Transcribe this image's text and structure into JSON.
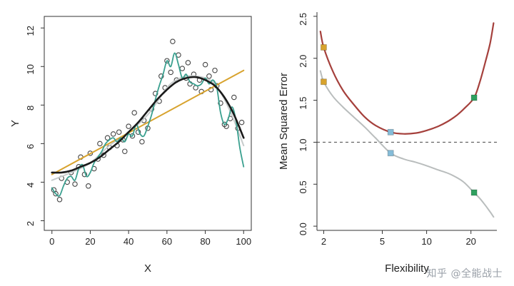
{
  "watermark": {
    "text": "知乎 @全能战士"
  },
  "chart_data": [
    {
      "id": "left",
      "type": "scatter",
      "title": "",
      "xlabel": "X",
      "ylabel": "Y",
      "xscale": "linear",
      "xlim": [
        -4,
        104
      ],
      "ylim": [
        1.5,
        12.6
      ],
      "xticks": [
        0,
        20,
        40,
        60,
        80,
        100
      ],
      "yticks": [
        2,
        4,
        6,
        8,
        10,
        12
      ],
      "xtick_labels": [
        "0",
        "20",
        "40",
        "60",
        "80",
        "100"
      ],
      "ytick_labels": [
        "2",
        "4",
        "6",
        "8",
        "10",
        "12"
      ],
      "box": true,
      "grid": false,
      "points": [
        [
          1,
          3.6
        ],
        [
          2,
          3.4
        ],
        [
          4,
          3.1
        ],
        [
          5,
          4.2
        ],
        [
          8,
          4.0
        ],
        [
          10,
          4.5
        ],
        [
          12,
          3.9
        ],
        [
          14,
          4.8
        ],
        [
          15,
          5.3
        ],
        [
          17,
          4.4
        ],
        [
          19,
          3.8
        ],
        [
          20,
          5.5
        ],
        [
          22,
          4.7
        ],
        [
          24,
          5.2
        ],
        [
          25,
          6.0
        ],
        [
          27,
          5.4
        ],
        [
          29,
          6.3
        ],
        [
          30,
          5.8
        ],
        [
          32,
          6.5
        ],
        [
          34,
          5.9
        ],
        [
          35,
          6.6
        ],
        [
          37,
          6.2
        ],
        [
          38,
          5.6
        ],
        [
          40,
          6.9
        ],
        [
          42,
          6.4
        ],
        [
          43,
          7.6
        ],
        [
          45,
          6.6
        ],
        [
          47,
          6.1
        ],
        [
          48,
          7.2
        ],
        [
          50,
          6.8
        ],
        [
          52,
          7.8
        ],
        [
          54,
          8.6
        ],
        [
          56,
          8.2
        ],
        [
          57,
          9.5
        ],
        [
          59,
          8.9
        ],
        [
          60,
          10.3
        ],
        [
          62,
          9.7
        ],
        [
          63,
          11.3
        ],
        [
          65,
          9.3
        ],
        [
          66,
          10.6
        ],
        [
          68,
          9.9
        ],
        [
          70,
          9.4
        ],
        [
          71,
          10.2
        ],
        [
          72,
          9.1
        ],
        [
          74,
          9.6
        ],
        [
          75,
          8.9
        ],
        [
          77,
          9.3
        ],
        [
          78,
          8.7
        ],
        [
          80,
          10.1
        ],
        [
          82,
          9.5
        ],
        [
          83,
          8.8
        ],
        [
          85,
          9.8
        ],
        [
          86,
          9.0
        ],
        [
          88,
          8.1
        ],
        [
          90,
          7.0
        ],
        [
          91,
          6.9
        ],
        [
          93,
          7.3
        ],
        [
          95,
          8.4
        ],
        [
          97,
          6.8
        ],
        [
          99,
          7.1
        ]
      ],
      "series": [
        {
          "name": "smooth-spline",
          "color": "#c7cccc",
          "width": 2,
          "smooth": true,
          "points": [
            [
              0,
              4.1
            ],
            [
              10,
              4.5
            ],
            [
              20,
              5.0
            ],
            [
              30,
              5.9
            ],
            [
              40,
              6.6
            ],
            [
              50,
              7.5
            ],
            [
              60,
              8.9
            ],
            [
              65,
              9.3
            ],
            [
              70,
              9.5
            ],
            [
              75,
              9.5
            ],
            [
              80,
              9.4
            ],
            [
              85,
              9.1
            ],
            [
              90,
              8.3
            ],
            [
              95,
              7.2
            ],
            [
              100,
              5.9
            ]
          ]
        },
        {
          "name": "linear-fit",
          "color": "#d8a32e",
          "width": 2,
          "smooth": false,
          "points": [
            [
              0,
              4.4
            ],
            [
              100,
              9.8
            ]
          ]
        },
        {
          "name": "flexible-spline",
          "color": "#3aa08f",
          "width": 1.8,
          "smooth": true,
          "points": [
            [
              0,
              3.7
            ],
            [
              2,
              3.4
            ],
            [
              4,
              3.3
            ],
            [
              6,
              3.8
            ],
            [
              8,
              4.2
            ],
            [
              10,
              4.3
            ],
            [
              12,
              4.1
            ],
            [
              14,
              4.7
            ],
            [
              16,
              4.9
            ],
            [
              18,
              4.3
            ],
            [
              20,
              4.5
            ],
            [
              22,
              5.0
            ],
            [
              24,
              5.3
            ],
            [
              26,
              5.6
            ],
            [
              28,
              6.0
            ],
            [
              30,
              6.2
            ],
            [
              32,
              6.3
            ],
            [
              34,
              6.1
            ],
            [
              36,
              6.3
            ],
            [
              38,
              6.1
            ],
            [
              40,
              6.5
            ],
            [
              42,
              6.4
            ],
            [
              44,
              7.0
            ],
            [
              46,
              6.5
            ],
            [
              48,
              6.4
            ],
            [
              50,
              6.9
            ],
            [
              52,
              7.5
            ],
            [
              54,
              8.3
            ],
            [
              56,
              9.0
            ],
            [
              58,
              9.6
            ],
            [
              60,
              10.3
            ],
            [
              62,
              10.0
            ],
            [
              64,
              10.7
            ],
            [
              66,
              10.1
            ],
            [
              68,
              9.4
            ],
            [
              70,
              9.6
            ],
            [
              72,
              9.2
            ],
            [
              74,
              9.1
            ],
            [
              76,
              9.0
            ],
            [
              78,
              9.1
            ],
            [
              80,
              9.4
            ],
            [
              82,
              9.1
            ],
            [
              84,
              9.3
            ],
            [
              86,
              8.9
            ],
            [
              88,
              7.6
            ],
            [
              90,
              7.0
            ],
            [
              92,
              7.3
            ],
            [
              94,
              7.9
            ],
            [
              96,
              7.2
            ],
            [
              98,
              5.8
            ],
            [
              100,
              4.8
            ]
          ]
        },
        {
          "name": "true-function",
          "color": "#1a1a1a",
          "width": 2.6,
          "smooth": true,
          "points": [
            [
              0,
              4.5
            ],
            [
              5,
              4.5
            ],
            [
              10,
              4.6
            ],
            [
              15,
              4.8
            ],
            [
              20,
              5.0
            ],
            [
              25,
              5.3
            ],
            [
              30,
              5.7
            ],
            [
              35,
              6.1
            ],
            [
              40,
              6.6
            ],
            [
              45,
              7.1
            ],
            [
              50,
              7.7
            ],
            [
              55,
              8.3
            ],
            [
              60,
              8.8
            ],
            [
              65,
              9.2
            ],
            [
              70,
              9.4
            ],
            [
              75,
              9.45
            ],
            [
              80,
              9.3
            ],
            [
              85,
              9.0
            ],
            [
              90,
              8.4
            ],
            [
              95,
              7.5
            ],
            [
              100,
              6.3
            ]
          ]
        }
      ]
    },
    {
      "id": "right",
      "type": "line",
      "title": "",
      "xlabel": "Flexibility",
      "ylabel": "Mean Squared Error",
      "xscale": "log",
      "xlim": [
        1.8,
        30
      ],
      "ylim": [
        -0.05,
        2.55
      ],
      "xticks": [
        2,
        5,
        10,
        20
      ],
      "yticks": [
        0.0,
        0.5,
        1.0,
        1.5,
        2.0,
        2.5
      ],
      "xtick_labels": [
        "2",
        "5",
        "10",
        "20"
      ],
      "ytick_labels": [
        "0.0",
        "0.5",
        "1.0",
        "1.5",
        "2.0",
        "2.5"
      ],
      "box": false,
      "grid": false,
      "hline": {
        "y": 1.0,
        "dash": "4 4",
        "color": "#444",
        "width": 1,
        "name": "irreducible-error-line"
      },
      "series": [
        {
          "name": "training-mse",
          "color": "#b9bdbd",
          "width": 2,
          "smooth": true,
          "points": [
            [
              1.9,
              1.85
            ],
            [
              2,
              1.72
            ],
            [
              2.3,
              1.55
            ],
            [
              2.7,
              1.42
            ],
            [
              3.2,
              1.3
            ],
            [
              3.8,
              1.18
            ],
            [
              4.5,
              1.05
            ],
            [
              5.7,
              0.87
            ],
            [
              7,
              0.8
            ],
            [
              8.5,
              0.76
            ],
            [
              10,
              0.72
            ],
            [
              12,
              0.67
            ],
            [
              14,
              0.63
            ],
            [
              16,
              0.58
            ],
            [
              18,
              0.52
            ],
            [
              21,
              0.4
            ],
            [
              23,
              0.33
            ],
            [
              25,
              0.25
            ],
            [
              27,
              0.17
            ],
            [
              28.5,
              0.11
            ]
          ]
        },
        {
          "name": "test-mse",
          "color": "#a5403c",
          "width": 2.2,
          "smooth": true,
          "points": [
            [
              1.9,
              2.32
            ],
            [
              2,
              2.13
            ],
            [
              2.3,
              1.85
            ],
            [
              2.7,
              1.62
            ],
            [
              3.2,
              1.45
            ],
            [
              3.8,
              1.3
            ],
            [
              4.5,
              1.2
            ],
            [
              5.7,
              1.12
            ],
            [
              7,
              1.1
            ],
            [
              8.5,
              1.11
            ],
            [
              10,
              1.14
            ],
            [
              12,
              1.19
            ],
            [
              14,
              1.25
            ],
            [
              16,
              1.32
            ],
            [
              18,
              1.4
            ],
            [
              21,
              1.53
            ],
            [
              23,
              1.72
            ],
            [
              25,
              1.95
            ],
            [
              27,
              2.18
            ],
            [
              28.5,
              2.42
            ]
          ]
        }
      ],
      "markers": [
        {
          "name": "linear-model-test-mse",
          "color": "#d8a32e",
          "x": 2,
          "y": 2.13
        },
        {
          "name": "linear-model-train-mse",
          "color": "#d8a32e",
          "x": 2,
          "y": 1.72
        },
        {
          "name": "medium-flex-test-mse",
          "color": "#85bcd8",
          "x": 5.7,
          "y": 1.12
        },
        {
          "name": "medium-flex-train-mse",
          "color": "#85bcd8",
          "x": 5.7,
          "y": 0.87
        },
        {
          "name": "high-flex-test-mse",
          "color": "#2fa05f",
          "x": 21,
          "y": 1.53
        },
        {
          "name": "high-flex-train-mse",
          "color": "#2fa05f",
          "x": 21,
          "y": 0.4
        }
      ]
    }
  ]
}
